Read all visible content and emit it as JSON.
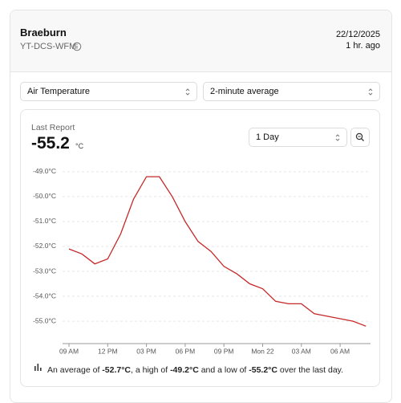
{
  "header": {
    "title": "Braeburn",
    "station_id": "YT-DCS-WFM",
    "date": "22/12/2025",
    "updated": "1 hr. ago"
  },
  "controls": {
    "parameter": "Air Temperature",
    "averaging": "2-minute average",
    "range": "1 Day"
  },
  "report": {
    "label": "Last Report",
    "value": "-55.2",
    "unit": "°C"
  },
  "summary": {
    "prefix": "An average of ",
    "average": "-52.7°C",
    "mid1": ", a high of ",
    "high": "-49.2°C",
    "mid2": " and a low of ",
    "low": "-55.2°C",
    "suffix": " over the last day."
  },
  "chart_data": {
    "type": "line",
    "color": "#c62828",
    "grid": true,
    "categories": [
      "09 AM",
      null,
      null,
      "12 PM",
      null,
      null,
      "03 PM",
      null,
      null,
      "06 PM",
      null,
      null,
      "09 PM",
      null,
      null,
      "Mon 22",
      null,
      null,
      "03 AM",
      null,
      null,
      "06 AM",
      null,
      null
    ],
    "values": [
      -52.1,
      -52.3,
      -52.7,
      -52.5,
      -51.5,
      -50.1,
      -49.2,
      -49.2,
      -50.0,
      -51.0,
      -51.8,
      -52.2,
      -52.8,
      -53.1,
      -53.5,
      -53.7,
      -54.2,
      -54.3,
      -54.3,
      -54.7,
      -54.8,
      -54.9,
      -55.0,
      -55.2
    ],
    "ylim": [
      -55.9,
      -48.7
    ],
    "yticks": [
      {
        "value": -49,
        "label": "-49.0°C"
      },
      {
        "value": -50,
        "label": "-50.0°C"
      },
      {
        "value": -51,
        "label": "-51.0°C"
      },
      {
        "value": -52,
        "label": "-52.0°C"
      },
      {
        "value": -53,
        "label": "-53.0°C"
      },
      {
        "value": -54,
        "label": "-54.0°C"
      },
      {
        "value": -55,
        "label": "-55.0°C"
      }
    ]
  }
}
